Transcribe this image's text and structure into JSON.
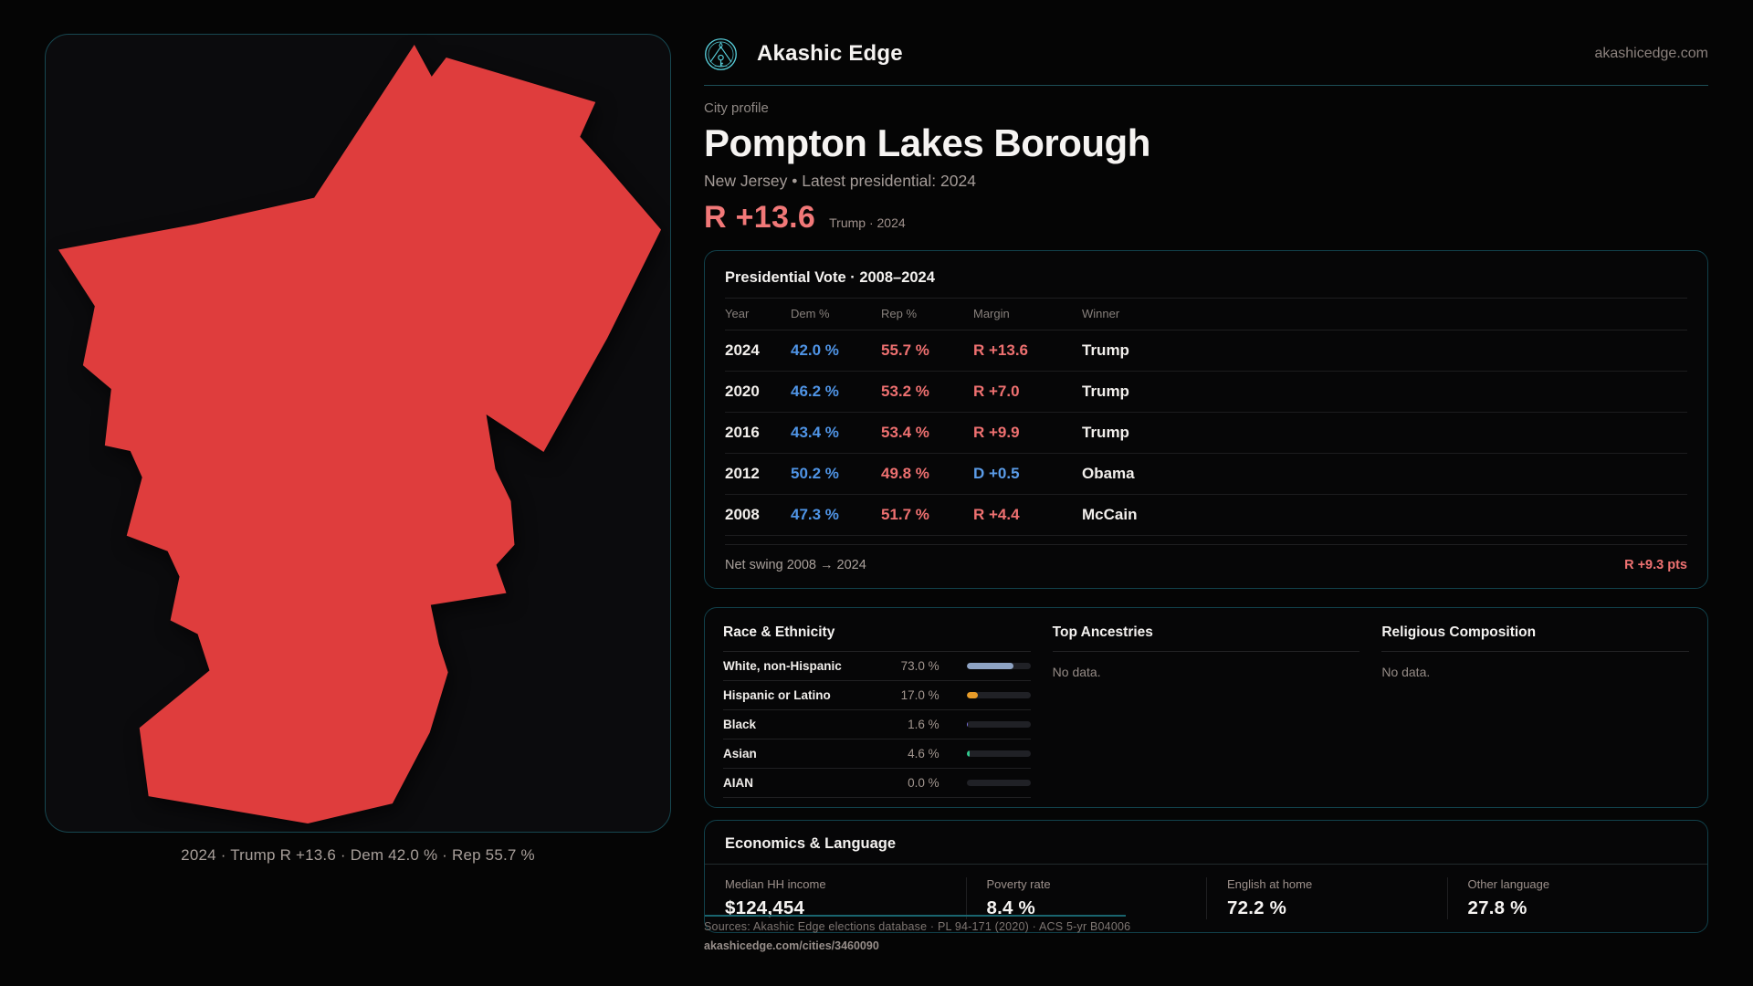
{
  "brand": {
    "name": "Akashic Edge",
    "domain": "akashicedge.com",
    "logo_color": "#58cfdb"
  },
  "header": {
    "kicker": "City profile",
    "title": "Pompton Lakes Borough",
    "subtitle": "New Jersey • Latest presidential: 2024",
    "headline": {
      "value": "R +13.6",
      "context": "Trump · 2024",
      "color": "#f17878"
    }
  },
  "map": {
    "caption": "2024 · Trump R +13.6 · Dem 42.0 % · Rep 55.7 %",
    "fill_color": "#df3d3d"
  },
  "vote_table": {
    "title": "Presidential Vote · 2008–2024",
    "columns": [
      "Year",
      "Dem %",
      "Rep %",
      "Margin",
      "Winner"
    ],
    "rows": [
      {
        "year": "2024",
        "dem": "42.0 %",
        "rep": "55.7 %",
        "margin": "R +13.6",
        "party": "R",
        "winner": "Trump"
      },
      {
        "year": "2020",
        "dem": "46.2 %",
        "rep": "53.2 %",
        "margin": "R +7.0",
        "party": "R",
        "winner": "Trump"
      },
      {
        "year": "2016",
        "dem": "43.4 %",
        "rep": "53.4 %",
        "margin": "R +9.9",
        "party": "R",
        "winner": "Trump"
      },
      {
        "year": "2012",
        "dem": "50.2 %",
        "rep": "49.8 %",
        "margin": "D +0.5",
        "party": "D",
        "winner": "Obama"
      },
      {
        "year": "2008",
        "dem": "47.3 %",
        "rep": "51.7 %",
        "margin": "R +4.4",
        "party": "R",
        "winner": "McCain"
      }
    ],
    "footer": {
      "label": "Net swing 2008 → 2024",
      "value": "R +9.3 pts"
    }
  },
  "demographics": {
    "race": {
      "title": "Race & Ethnicity",
      "rows": [
        {
          "label": "White, non-Hispanic",
          "value": "73.0 %",
          "pct": 73.0,
          "bar_color": "#8ea3c4"
        },
        {
          "label": "Hispanic or Latino",
          "value": "17.0 %",
          "pct": 17.0,
          "bar_color": "#e79b28"
        },
        {
          "label": "Black",
          "value": "1.6 %",
          "pct": 1.6,
          "bar_color": "#7a6fe0"
        },
        {
          "label": "Asian",
          "value": "4.6 %",
          "pct": 4.6,
          "bar_color": "#31c98e"
        },
        {
          "label": "AIAN",
          "value": "0.0 %",
          "pct": 0.0,
          "bar_color": "#31c98e"
        }
      ]
    },
    "ancestries": {
      "title": "Top Ancestries",
      "empty": "No data."
    },
    "religion": {
      "title": "Religious Composition",
      "empty": "No data."
    }
  },
  "economics": {
    "title": "Economics & Language",
    "stats": [
      {
        "label": "Median HH income",
        "value": "$124,454"
      },
      {
        "label": "Poverty rate",
        "value": "8.4 %"
      },
      {
        "label": "English at home",
        "value": "72.2 %"
      },
      {
        "label": "Other language",
        "value": "27.8 %"
      }
    ]
  },
  "footer": {
    "sources": "Sources: Akashic Edge elections database · PL 94-171 (2020) · ACS 5-yr B04006",
    "permalink": "akashicedge.com/cities/3460090"
  },
  "colors": {
    "dem": "#4f94e6",
    "rep": "#ee7070",
    "accent_teal": "#1d4e56",
    "panel_border": "#11414b"
  }
}
